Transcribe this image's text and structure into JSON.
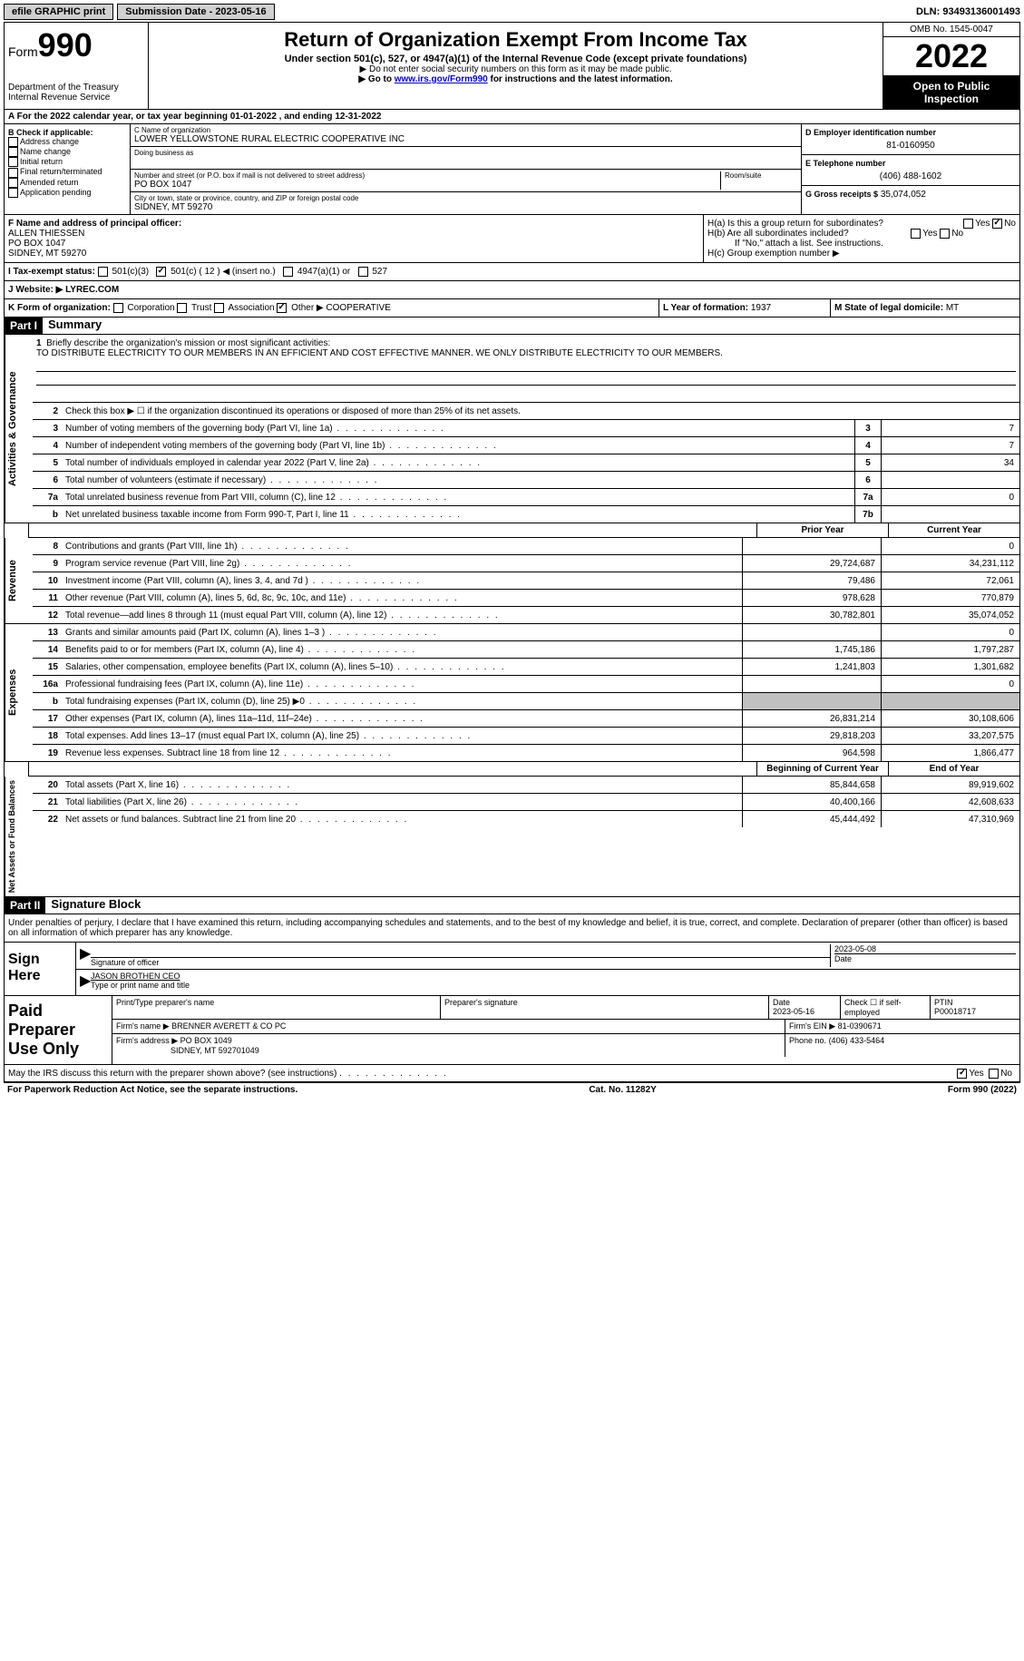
{
  "topbar": {
    "efile": "efile GRAPHIC print",
    "sub_label": "Submission Date - 2023-05-16",
    "dln": "DLN: 93493136001493"
  },
  "header": {
    "form_label": "Form",
    "form_number": "990",
    "dept": "Department of the Treasury",
    "irs": "Internal Revenue Service",
    "title": "Return of Organization Exempt From Income Tax",
    "subtitle": "Under section 501(c), 527, or 4947(a)(1) of the Internal Revenue Code (except private foundations)",
    "note1": "▶ Do not enter social security numbers on this form as it may be made public.",
    "note2_pre": "▶ Go to ",
    "note2_link": "www.irs.gov/Form990",
    "note2_post": " for instructions and the latest information.",
    "omb": "OMB No. 1545-0047",
    "year": "2022",
    "inspect": "Open to Public Inspection"
  },
  "rowA": "A For the 2022 calendar year, or tax year beginning 01-01-2022   , and ending 12-31-2022",
  "colB": {
    "header": "B Check if applicable:",
    "items": [
      "Address change",
      "Name change",
      "Initial return",
      "Final return/terminated",
      "Amended return",
      "Application pending"
    ]
  },
  "colC": {
    "name_lbl": "C Name of organization",
    "name": "LOWER YELLOWSTONE RURAL ELECTRIC COOPERATIVE INC",
    "dba_lbl": "Doing business as",
    "addr_lbl": "Number and street (or P.O. box if mail is not delivered to street address)",
    "room_lbl": "Room/suite",
    "addr": "PO BOX 1047",
    "city_lbl": "City or town, state or province, country, and ZIP or foreign postal code",
    "city": "SIDNEY, MT  59270"
  },
  "colD": {
    "ein_lbl": "D Employer identification number",
    "ein": "81-0160950",
    "phone_lbl": "E Telephone number",
    "phone": "(406) 488-1602",
    "gross_lbl": "G Gross receipts $",
    "gross": "35,074,052"
  },
  "colF": {
    "lbl": "F Name and address of principal officer:",
    "name": "ALLEN THIESSEN",
    "addr1": "PO BOX 1047",
    "addr2": "SIDNEY, MT  59270"
  },
  "colH": {
    "a_lbl": "H(a)  Is this a group return for subordinates?",
    "b_lbl": "H(b)  Are all subordinates included?",
    "b_note": "If \"No,\" attach a list. See instructions.",
    "c_lbl": "H(c)  Group exemption number ▶"
  },
  "rowI": {
    "lbl": "I  Tax-exempt status:",
    "opt1": "501(c)(3)",
    "opt2": "501(c) ( 12 ) ◀ (insert no.)",
    "opt3": "4947(a)(1) or",
    "opt4": "527"
  },
  "rowJ": {
    "lbl": "J  Website: ▶ ",
    "val": "LYREC.COM"
  },
  "rowK": {
    "lbl": "K Form of organization:",
    "corp": "Corporation",
    "trust": "Trust",
    "assoc": "Association",
    "other": "Other ▶",
    "other_val": "COOPERATIVE"
  },
  "rowL": {
    "lbl": "L Year of formation: ",
    "val": "1937"
  },
  "rowM": {
    "lbl": "M State of legal domicile: ",
    "val": "MT"
  },
  "part1": {
    "hdr": "Part I",
    "title": "Summary"
  },
  "mission": {
    "num": "1",
    "lbl": "Briefly describe the organization's mission or most significant activities:",
    "text": "TO DISTRIBUTE ELECTRICITY TO OUR MEMBERS IN AN EFFICIENT AND COST EFFECTIVE MANNER. WE ONLY DISTRIBUTE ELECTRICITY TO OUR MEMBERS."
  },
  "line2": "Check this box ▶ ☐ if the organization discontinued its operations or disposed of more than 25% of its net assets.",
  "activities": {
    "label": "Activities & Governance",
    "lines": [
      {
        "n": "3",
        "d": "Number of voting members of the governing body (Part VI, line 1a)",
        "b": "3",
        "v": "7"
      },
      {
        "n": "4",
        "d": "Number of independent voting members of the governing body (Part VI, line 1b)",
        "b": "4",
        "v": "7"
      },
      {
        "n": "5",
        "d": "Total number of individuals employed in calendar year 2022 (Part V, line 2a)",
        "b": "5",
        "v": "34"
      },
      {
        "n": "6",
        "d": "Total number of volunteers (estimate if necessary)",
        "b": "6",
        "v": ""
      },
      {
        "n": "7a",
        "d": "Total unrelated business revenue from Part VIII, column (C), line 12",
        "b": "7a",
        "v": "0"
      },
      {
        "n": "b",
        "d": "Net unrelated business taxable income from Form 990-T, Part I, line 11",
        "b": "7b",
        "v": ""
      }
    ]
  },
  "colhdr": {
    "prior": "Prior Year",
    "current": "Current Year"
  },
  "revenue": {
    "label": "Revenue",
    "lines": [
      {
        "n": "8",
        "d": "Contributions and grants (Part VIII, line 1h)",
        "p": "",
        "c": "0"
      },
      {
        "n": "9",
        "d": "Program service revenue (Part VIII, line 2g)",
        "p": "29,724,687",
        "c": "34,231,112"
      },
      {
        "n": "10",
        "d": "Investment income (Part VIII, column (A), lines 3, 4, and 7d )",
        "p": "79,486",
        "c": "72,061"
      },
      {
        "n": "11",
        "d": "Other revenue (Part VIII, column (A), lines 5, 6d, 8c, 9c, 10c, and 11e)",
        "p": "978,628",
        "c": "770,879"
      },
      {
        "n": "12",
        "d": "Total revenue—add lines 8 through 11 (must equal Part VIII, column (A), line 12)",
        "p": "30,782,801",
        "c": "35,074,052"
      }
    ]
  },
  "expenses": {
    "label": "Expenses",
    "lines": [
      {
        "n": "13",
        "d": "Grants and similar amounts paid (Part IX, column (A), lines 1–3 )",
        "p": "",
        "c": "0"
      },
      {
        "n": "14",
        "d": "Benefits paid to or for members (Part IX, column (A), line 4)",
        "p": "1,745,186",
        "c": "1,797,287"
      },
      {
        "n": "15",
        "d": "Salaries, other compensation, employee benefits (Part IX, column (A), lines 5–10)",
        "p": "1,241,803",
        "c": "1,301,682"
      },
      {
        "n": "16a",
        "d": "Professional fundraising fees (Part IX, column (A), line 11e)",
        "p": "",
        "c": "0"
      },
      {
        "n": "b",
        "d": "Total fundraising expenses (Part IX, column (D), line 25) ▶0",
        "p": "shade",
        "c": "shade"
      },
      {
        "n": "17",
        "d": "Other expenses (Part IX, column (A), lines 11a–11d, 11f–24e)",
        "p": "26,831,214",
        "c": "30,108,606"
      },
      {
        "n": "18",
        "d": "Total expenses. Add lines 13–17 (must equal Part IX, column (A), line 25)",
        "p": "29,818,203",
        "c": "33,207,575"
      },
      {
        "n": "19",
        "d": "Revenue less expenses. Subtract line 18 from line 12",
        "p": "964,598",
        "c": "1,866,477"
      }
    ]
  },
  "colhdr2": {
    "prior": "Beginning of Current Year",
    "current": "End of Year"
  },
  "netassets": {
    "label": "Net Assets or Fund Balances",
    "lines": [
      {
        "n": "20",
        "d": "Total assets (Part X, line 16)",
        "p": "85,844,658",
        "c": "89,919,602"
      },
      {
        "n": "21",
        "d": "Total liabilities (Part X, line 26)",
        "p": "40,400,166",
        "c": "42,608,633"
      },
      {
        "n": "22",
        "d": "Net assets or fund balances. Subtract line 21 from line 20",
        "p": "45,444,492",
        "c": "47,310,969"
      }
    ]
  },
  "part2": {
    "hdr": "Part II",
    "title": "Signature Block",
    "text": "Under penalties of perjury, I declare that I have examined this return, including accompanying schedules and statements, and to the best of my knowledge and belief, it is true, correct, and complete. Declaration of preparer (other than officer) is based on all information of which preparer has any knowledge."
  },
  "sign": {
    "here": "Sign Here",
    "sig_lbl": "Signature of officer",
    "date_lbl": "Date",
    "date": "2023-05-08",
    "name": "JASON BROTHEN CEO",
    "name_lbl": "Type or print name and title"
  },
  "prep": {
    "lbl": "Paid Preparer Use Only",
    "name_lbl": "Print/Type preparer's name",
    "sig_lbl": "Preparer's signature",
    "date_lbl": "Date",
    "date": "2023-05-16",
    "check_lbl": "Check ☐ if self-employed",
    "ptin_lbl": "PTIN",
    "ptin": "P00018717",
    "firm_name_lbl": "Firm's name    ▶",
    "firm_name": "BRENNER AVERETT & CO PC",
    "firm_ein_lbl": "Firm's EIN ▶",
    "firm_ein": "81-0390671",
    "firm_addr_lbl": "Firm's address ▶",
    "firm_addr1": "PO BOX 1049",
    "firm_addr2": "SIDNEY, MT  592701049",
    "phone_lbl": "Phone no.",
    "phone": "(406) 433-5464"
  },
  "discuss": "May the IRS discuss this return with the preparer shown above? (see instructions)",
  "footer": {
    "left": "For Paperwork Reduction Act Notice, see the separate instructions.",
    "mid": "Cat. No. 11282Y",
    "right": "Form 990 (2022)"
  }
}
